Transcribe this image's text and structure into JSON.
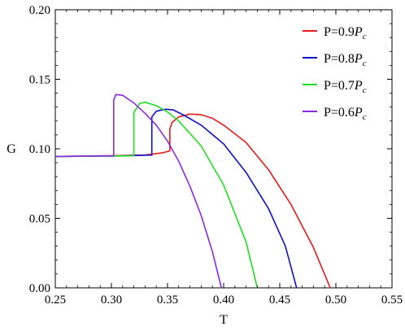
{
  "chart_data": {
    "type": "line",
    "xlabel": "T",
    "ylabel": "G",
    "xlim": [
      0.25,
      0.55
    ],
    "ylim": [
      0.0,
      0.2
    ],
    "x_ticks": [
      "0.25",
      "0.30",
      "0.35",
      "0.40",
      "0.45",
      "0.50",
      "0.55"
    ],
    "y_ticks": [
      "0.00",
      "0.05",
      "0.10",
      "0.15",
      "0.20"
    ],
    "grid": false,
    "legend_position": "top-right",
    "series": [
      {
        "name_prefix": "P=0.9",
        "name_var": "P",
        "name_sub": "c",
        "color": "#e41a1c",
        "points": [
          [
            0.25,
            0.0945
          ],
          [
            0.3,
            0.095
          ],
          [
            0.33,
            0.0955
          ],
          [
            0.345,
            0.097
          ],
          [
            0.352,
            0.0985
          ],
          [
            0.352,
            0.114
          ],
          [
            0.354,
            0.119
          ],
          [
            0.36,
            0.123
          ],
          [
            0.37,
            0.125
          ],
          [
            0.38,
            0.1245
          ],
          [
            0.39,
            0.122
          ],
          [
            0.4,
            0.117
          ],
          [
            0.42,
            0.1045
          ],
          [
            0.44,
            0.085
          ],
          [
            0.46,
            0.06
          ],
          [
            0.48,
            0.029
          ],
          [
            0.495,
            0.0
          ]
        ]
      },
      {
        "name_prefix": "P=0.8",
        "name_var": "P",
        "name_sub": "c",
        "color": "#1010c8",
        "points": [
          [
            0.25,
            0.0945
          ],
          [
            0.3,
            0.0948
          ],
          [
            0.336,
            0.0955
          ],
          [
            0.336,
            0.123
          ],
          [
            0.34,
            0.127
          ],
          [
            0.348,
            0.1285
          ],
          [
            0.355,
            0.128
          ],
          [
            0.365,
            0.124
          ],
          [
            0.38,
            0.117
          ],
          [
            0.4,
            0.1035
          ],
          [
            0.42,
            0.083
          ],
          [
            0.44,
            0.057
          ],
          [
            0.455,
            0.03
          ],
          [
            0.465,
            0.0
          ]
        ]
      },
      {
        "name_prefix": "P=0.7",
        "name_var": "P",
        "name_sub": "c",
        "color": "#22dd22",
        "points": [
          [
            0.25,
            0.0945
          ],
          [
            0.3,
            0.0948
          ],
          [
            0.32,
            0.095
          ],
          [
            0.32,
            0.126
          ],
          [
            0.325,
            0.1325
          ],
          [
            0.33,
            0.1335
          ],
          [
            0.34,
            0.131
          ],
          [
            0.35,
            0.1265
          ],
          [
            0.36,
            0.12
          ],
          [
            0.38,
            0.102
          ],
          [
            0.4,
            0.074
          ],
          [
            0.42,
            0.033
          ],
          [
            0.43,
            0.0
          ]
        ]
      },
      {
        "name_prefix": "P=0.6",
        "name_var": "P",
        "name_sub": "c",
        "color": "#8a2be2",
        "points": [
          [
            0.25,
            0.0945
          ],
          [
            0.28,
            0.0948
          ],
          [
            0.302,
            0.095
          ],
          [
            0.302,
            0.135
          ],
          [
            0.304,
            0.139
          ],
          [
            0.31,
            0.1385
          ],
          [
            0.32,
            0.133
          ],
          [
            0.33,
            0.1255
          ],
          [
            0.34,
            0.117
          ],
          [
            0.35,
            0.1055
          ],
          [
            0.36,
            0.091
          ],
          [
            0.37,
            0.073
          ],
          [
            0.38,
            0.052
          ],
          [
            0.39,
            0.026
          ],
          [
            0.398,
            0.0
          ]
        ]
      }
    ]
  }
}
